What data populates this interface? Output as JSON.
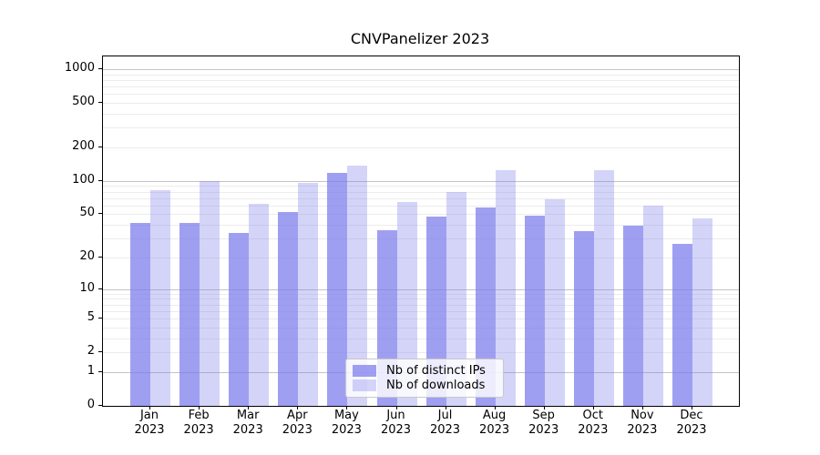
{
  "chart_data": {
    "type": "bar",
    "title": "CNVPanelizer 2023",
    "categories": [
      "Jan",
      "Feb",
      "Mar",
      "Apr",
      "May",
      "Jun",
      "Jul",
      "Aug",
      "Sep",
      "Oct",
      "Nov",
      "Dec"
    ],
    "category_year": "2023",
    "series": [
      {
        "name": "Nb of distinct IPs",
        "color": "#7a7aebb8",
        "values": [
          42,
          42,
          34,
          52,
          118,
          36,
          48,
          58,
          49,
          35,
          39,
          27
        ]
      },
      {
        "name": "Nb of downloads",
        "color": "#7a7aeb52",
        "values": [
          83,
          100,
          62,
          97,
          137,
          65,
          80,
          126,
          69,
          125,
          60,
          46
        ]
      }
    ],
    "yscale": "log1p",
    "y_ticks": [
      0,
      1,
      2,
      5,
      10,
      20,
      50,
      100,
      200,
      500,
      1000
    ],
    "ylim": [
      0,
      1300
    ],
    "grid": {
      "major_lines": [
        1,
        10,
        100,
        1000
      ],
      "minor_lines_per_decade": [
        2,
        3,
        4,
        5,
        6,
        7,
        8,
        9
      ]
    },
    "legend_position": "lower center",
    "colors": {
      "major_grid": "#c4c4c4",
      "minor_grid": "#ececec",
      "spine": "#000000"
    }
  }
}
